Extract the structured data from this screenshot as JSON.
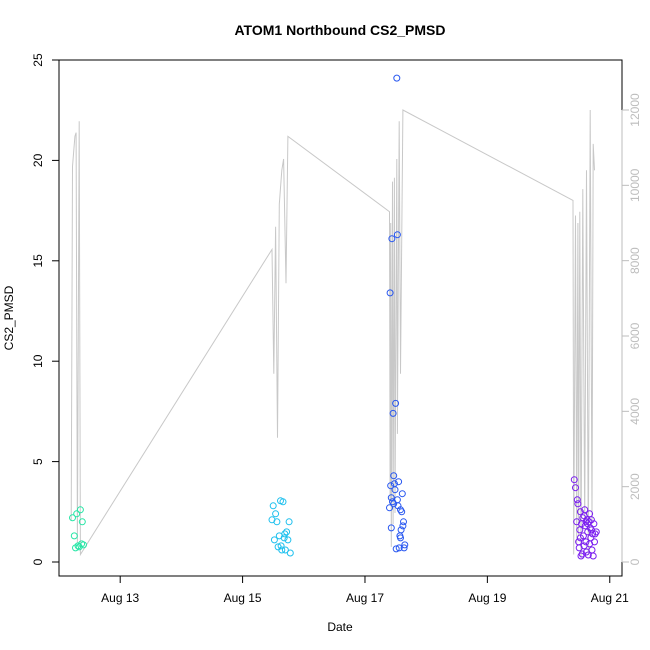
{
  "chart_data": {
    "type": "scatter",
    "title": "ATOM1 Northbound CS2_PMSD",
    "xlabel": "Date",
    "ylabel": "CS2_PMSD",
    "x_axis": {
      "unit": "day of August",
      "range": [
        12.0,
        21.2
      ],
      "ticks": [
        13,
        15,
        17,
        19,
        21
      ],
      "tick_labels": [
        "Aug 13",
        "Aug 15",
        "Aug 17",
        "Aug 19",
        "Aug 21"
      ]
    },
    "y_axis_left": {
      "range": [
        0,
        25
      ],
      "ticks": [
        0,
        5,
        10,
        15,
        20,
        25
      ]
    },
    "y_axis_right": {
      "range": [
        0,
        12000
      ],
      "ticks": [
        0,
        2000,
        4000,
        6000,
        8000,
        10000,
        12000
      ],
      "color": "#bdbdbd"
    },
    "grid": false,
    "series": [
      {
        "color": "#26e6a6",
        "points": [
          [
            12.22,
            2.2
          ],
          [
            12.25,
            1.3
          ],
          [
            12.27,
            0.7
          ],
          [
            12.29,
            2.4
          ],
          [
            12.31,
            0.8
          ],
          [
            12.33,
            0.75
          ],
          [
            12.35,
            2.6
          ],
          [
            12.37,
            0.9
          ],
          [
            12.38,
            2.0
          ],
          [
            12.4,
            0.85
          ]
        ]
      },
      {
        "color": "#1ec0ee",
        "points": [
          [
            15.48,
            2.1
          ],
          [
            15.5,
            2.8
          ],
          [
            15.52,
            1.1
          ],
          [
            15.54,
            2.4
          ],
          [
            15.56,
            2.0
          ],
          [
            15.58,
            0.75
          ],
          [
            15.6,
            1.3
          ],
          [
            15.62,
            3.05
          ],
          [
            15.64,
            0.6
          ],
          [
            15.66,
            3.0
          ],
          [
            15.68,
            1.2
          ],
          [
            15.7,
            0.6
          ],
          [
            15.72,
            1.5
          ],
          [
            15.74,
            1.1
          ],
          [
            15.76,
            2.0
          ],
          [
            15.78,
            0.45
          ],
          [
            15.63,
            0.8
          ],
          [
            15.69,
            1.4
          ]
        ]
      },
      {
        "color": "#2857f0",
        "points": [
          [
            17.4,
            2.7
          ],
          [
            17.41,
            13.4
          ],
          [
            17.42,
            3.8
          ],
          [
            17.43,
            1.7
          ],
          [
            17.44,
            16.1
          ],
          [
            17.45,
            3.0
          ],
          [
            17.46,
            7.4
          ],
          [
            17.47,
            4.3
          ],
          [
            17.48,
            3.9
          ],
          [
            17.49,
            3.6
          ],
          [
            17.5,
            7.9
          ],
          [
            17.51,
            0.65
          ],
          [
            17.52,
            24.1
          ],
          [
            17.53,
            16.3
          ],
          [
            17.54,
            2.8
          ],
          [
            17.55,
            4.0
          ],
          [
            17.56,
            0.7
          ],
          [
            17.57,
            1.3
          ],
          [
            17.58,
            2.6
          ],
          [
            17.59,
            1.6
          ],
          [
            17.6,
            2.5
          ],
          [
            17.61,
            3.4
          ],
          [
            17.62,
            1.8
          ],
          [
            17.63,
            2.0
          ],
          [
            17.64,
            0.7
          ],
          [
            17.65,
            0.85
          ],
          [
            17.43,
            3.2
          ],
          [
            17.47,
            2.9
          ],
          [
            17.53,
            3.1
          ],
          [
            17.58,
            1.2
          ]
        ]
      },
      {
        "color": "#7b1ef0",
        "points": [
          [
            20.42,
            4.1
          ],
          [
            20.44,
            3.7
          ],
          [
            20.46,
            2.0
          ],
          [
            20.47,
            3.1
          ],
          [
            20.48,
            2.9
          ],
          [
            20.49,
            1.0
          ],
          [
            20.5,
            0.7
          ],
          [
            20.51,
            1.6
          ],
          [
            20.52,
            2.5
          ],
          [
            20.53,
            0.3
          ],
          [
            20.54,
            1.9
          ],
          [
            20.55,
            0.4
          ],
          [
            20.56,
            2.2
          ],
          [
            20.57,
            1.3
          ],
          [
            20.58,
            0.8
          ],
          [
            20.59,
            2.6
          ],
          [
            20.6,
            1.8
          ],
          [
            20.61,
            1.0
          ],
          [
            20.62,
            0.5
          ],
          [
            20.63,
            2.1
          ],
          [
            20.64,
            1.5
          ],
          [
            20.65,
            0.35
          ],
          [
            20.66,
            2.0
          ],
          [
            20.67,
            0.9
          ],
          [
            20.68,
            1.7
          ],
          [
            20.69,
            1.2
          ],
          [
            20.7,
            2.1
          ],
          [
            20.71,
            0.6
          ],
          [
            20.72,
            1.4
          ],
          [
            20.73,
            0.3
          ],
          [
            20.74,
            1.9
          ],
          [
            20.75,
            1.0
          ],
          [
            20.76,
            1.4
          ],
          [
            20.78,
            1.5
          ],
          [
            20.52,
            1.2
          ],
          [
            20.58,
            2.3
          ],
          [
            20.64,
            1.9
          ],
          [
            20.7,
            1.6
          ],
          [
            20.61,
            2.0
          ],
          [
            20.67,
            2.4
          ]
        ]
      }
    ],
    "secondary_line": {
      "color": "#c8c8c8",
      "axis": "right",
      "points": [
        [
          12.2,
          1100
        ],
        [
          12.22,
          10500
        ],
        [
          12.26,
          11300
        ],
        [
          12.28,
          11400
        ],
        [
          12.3,
          500
        ],
        [
          12.33,
          11700
        ],
        [
          12.35,
          200
        ],
        [
          15.48,
          8300
        ],
        [
          15.51,
          5000
        ],
        [
          15.54,
          8900
        ],
        [
          15.57,
          3300
        ],
        [
          15.6,
          9500
        ],
        [
          15.64,
          10400
        ],
        [
          15.67,
          10700
        ],
        [
          15.71,
          7400
        ],
        [
          15.74,
          11300
        ],
        [
          17.4,
          9300
        ],
        [
          17.41,
          1600
        ],
        [
          17.42,
          9000
        ],
        [
          17.43,
          400
        ],
        [
          17.45,
          10100
        ],
        [
          17.46,
          1000
        ],
        [
          17.48,
          10200
        ],
        [
          17.49,
          1300
        ],
        [
          17.52,
          10700
        ],
        [
          17.53,
          3400
        ],
        [
          17.56,
          11700
        ],
        [
          17.58,
          5000
        ],
        [
          17.62,
          12000
        ],
        [
          20.4,
          9600
        ],
        [
          20.41,
          200
        ],
        [
          20.44,
          9200
        ],
        [
          20.46,
          500
        ],
        [
          20.48,
          9000
        ],
        [
          20.49,
          700
        ],
        [
          20.51,
          9300
        ],
        [
          20.53,
          100
        ],
        [
          20.56,
          9900
        ],
        [
          20.59,
          1000
        ],
        [
          20.62,
          10400
        ],
        [
          20.65,
          200
        ],
        [
          20.68,
          12000
        ],
        [
          20.71,
          1000
        ],
        [
          20.73,
          11100
        ],
        [
          20.75,
          10400
        ]
      ]
    }
  }
}
